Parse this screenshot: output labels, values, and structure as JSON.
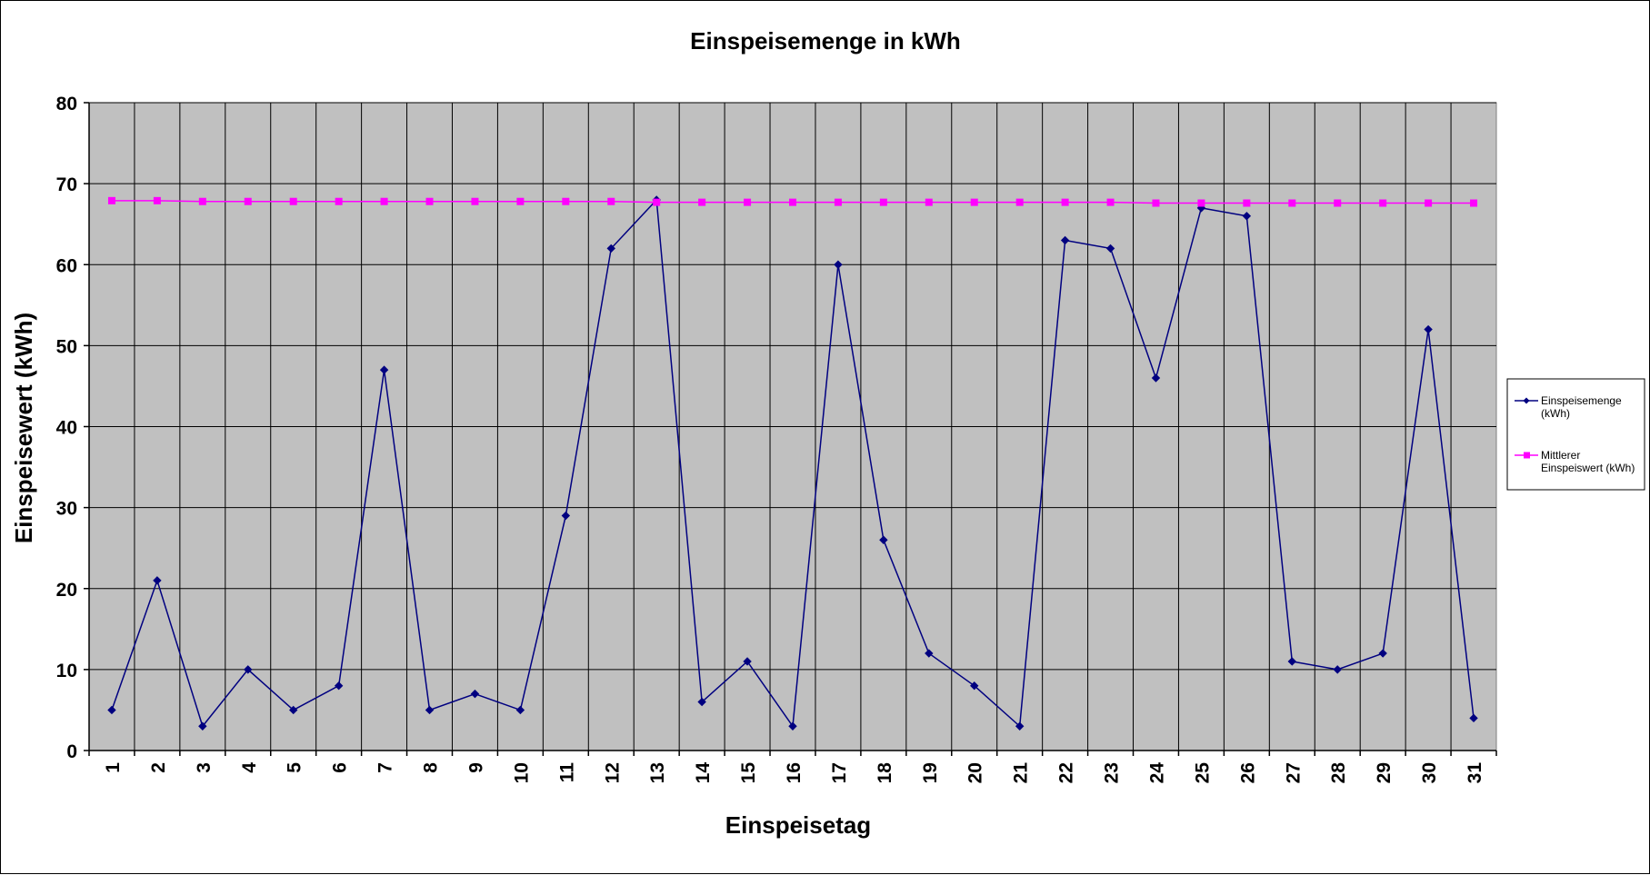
{
  "chart_data": {
    "type": "line",
    "title": "Einspeisemenge in kWh",
    "xlabel": "Einspeisetag",
    "ylabel": "Einspeisewert  (kWh)",
    "categories": [
      "1",
      "2",
      "3",
      "4",
      "5",
      "6",
      "7",
      "8",
      "9",
      "10",
      "11",
      "12",
      "13",
      "14",
      "15",
      "16",
      "17",
      "18",
      "19",
      "20",
      "21",
      "22",
      "23",
      "24",
      "25",
      "26",
      "27",
      "28",
      "29",
      "30",
      "31"
    ],
    "ylim": [
      0,
      80
    ],
    "yticks": [
      0,
      10,
      20,
      30,
      40,
      50,
      60,
      70,
      80
    ],
    "grid": true,
    "legend": "right",
    "series": [
      {
        "name": "Einspeisemenge (kWh)",
        "legend_lines": [
          "Einspeisemenge",
          "(kWh)"
        ],
        "color": "#000080",
        "marker": "diamond",
        "values": [
          5,
          21,
          3,
          10,
          5,
          8,
          47,
          5,
          7,
          5,
          29,
          62,
          68,
          6,
          11,
          3,
          60,
          26,
          12,
          8,
          3,
          63,
          62,
          46,
          67,
          66,
          11,
          10,
          12,
          52,
          4
        ]
      },
      {
        "name": "Mittlerer Einspeiswert (kWh)",
        "legend_lines": [
          "Mittlerer",
          "Einspeiswert (kWh)"
        ],
        "color": "#FF00FF",
        "marker": "square",
        "values": [
          67.9,
          67.9,
          67.8,
          67.8,
          67.8,
          67.8,
          67.8,
          67.8,
          67.8,
          67.8,
          67.8,
          67.8,
          67.7,
          67.7,
          67.7,
          67.7,
          67.7,
          67.7,
          67.7,
          67.7,
          67.7,
          67.7,
          67.7,
          67.6,
          67.6,
          67.6,
          67.6,
          67.6,
          67.6,
          67.6,
          67.6
        ]
      }
    ]
  }
}
